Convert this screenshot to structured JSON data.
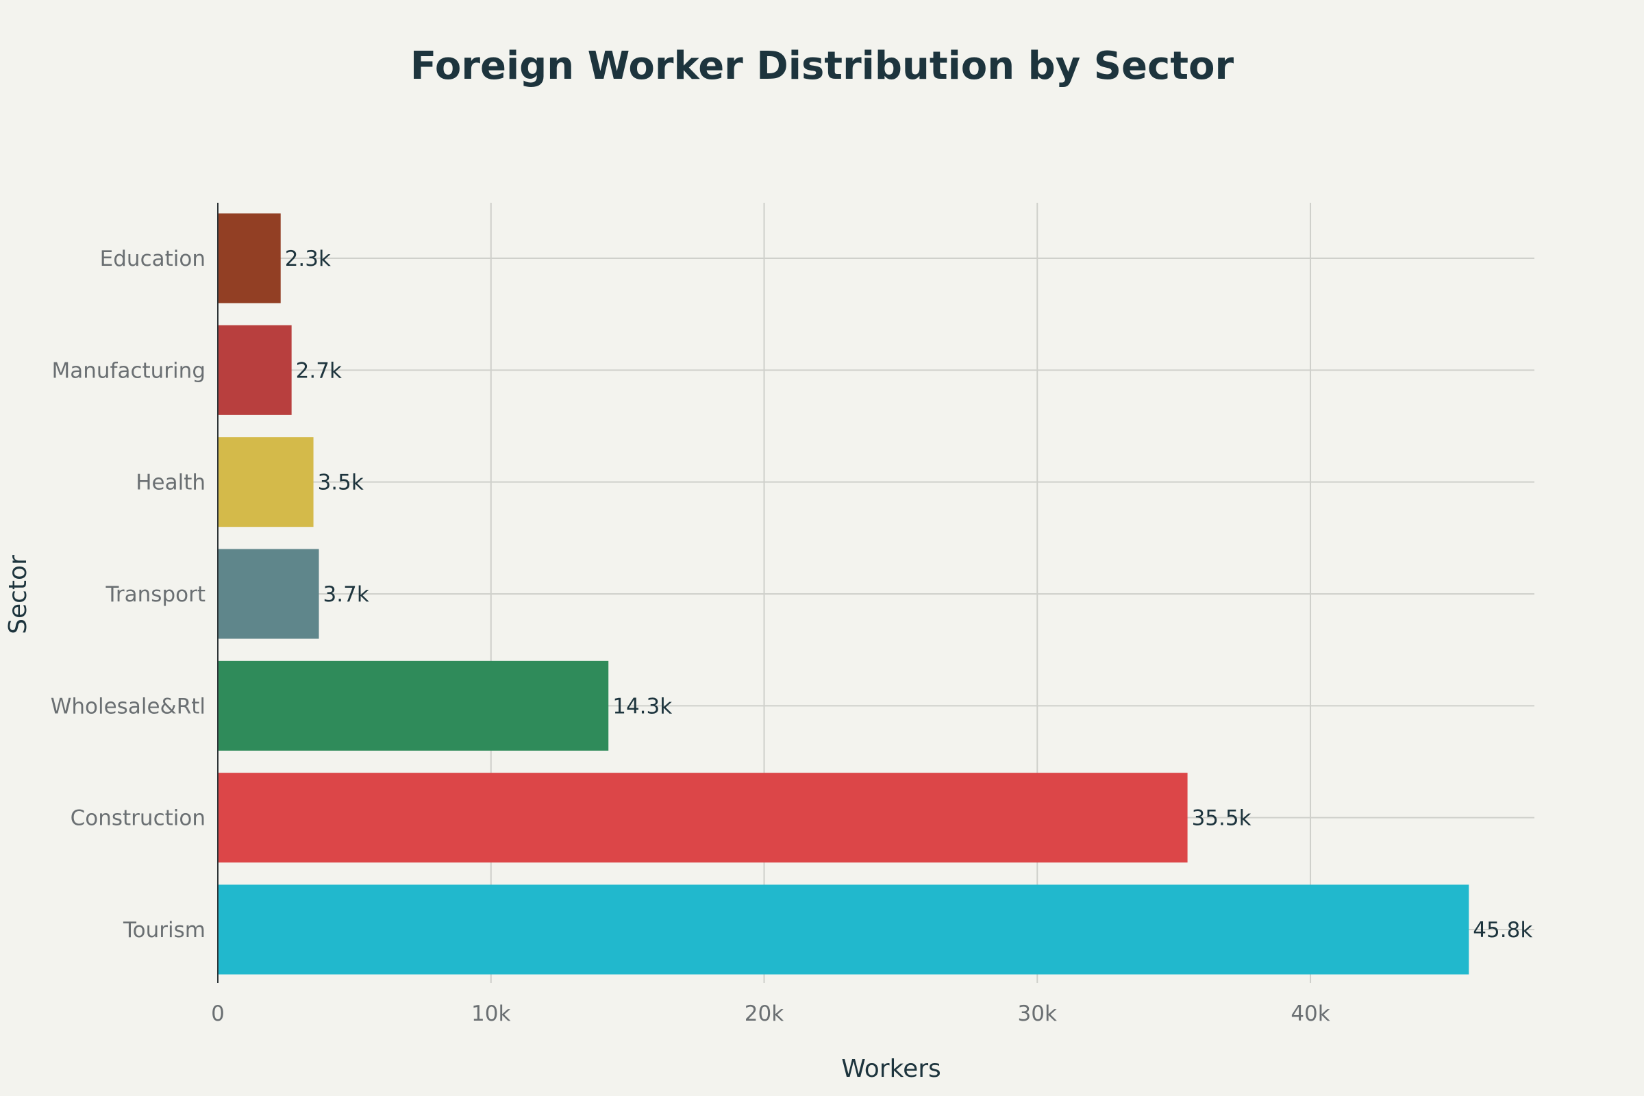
{
  "chart_data": {
    "type": "bar",
    "orientation": "horizontal",
    "title": "Foreign Worker Distribution by Sector",
    "xlabel": "Workers",
    "ylabel": "Sector",
    "xlim": [
      0,
      48200
    ],
    "grid": true,
    "legend": "none",
    "x_ticks": [
      {
        "value": 0,
        "label": "0"
      },
      {
        "value": 10000,
        "label": "10k"
      },
      {
        "value": 20000,
        "label": "20k"
      },
      {
        "value": 30000,
        "label": "30k"
      },
      {
        "value": 40000,
        "label": "40k"
      }
    ],
    "categories": [
      "Tourism",
      "Construction",
      "Wholesale&Rtl",
      "Transport",
      "Health",
      "Manufacturing",
      "Education"
    ],
    "values": [
      45800,
      35500,
      14300,
      3700,
      3500,
      2700,
      2300
    ],
    "data_labels": [
      "45.8k",
      "35.5k",
      "14.3k",
      "3.7k",
      "3.5k",
      "2.7k",
      "2.3k"
    ],
    "colors": [
      "#21b8cd",
      "#dc4648",
      "#2f8b5a",
      "#5f868b",
      "#d4ba4a",
      "#b83f3e",
      "#923f24"
    ]
  }
}
